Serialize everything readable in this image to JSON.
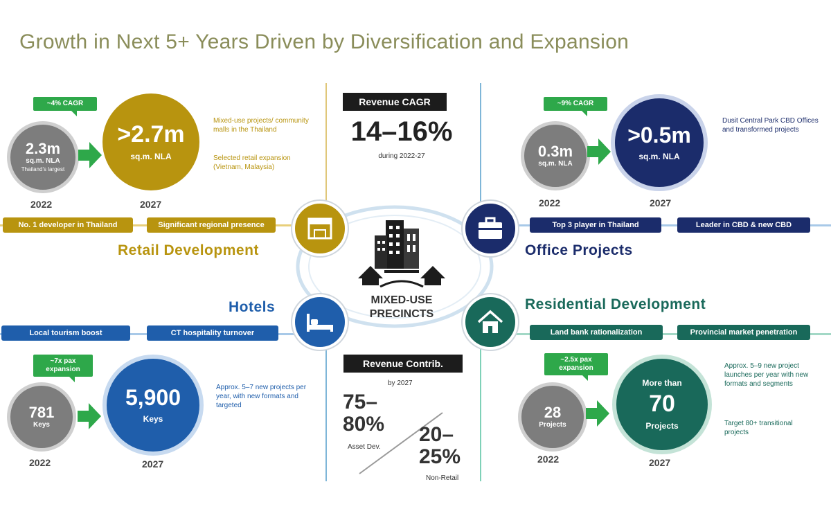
{
  "title": "Growth in Next 5+ Years Driven by Diversification and Expansion",
  "colors": {
    "gold": "#b8940f",
    "navy": "#1b2c6b",
    "blue": "#1f5eab",
    "green": "#19695a",
    "arrow": "#2ea84a",
    "grey": "#7d7d7d"
  },
  "center": {
    "label_line1": "MIXED-USE",
    "label_line2": "PRECINCTS",
    "icon": "buildings-icon"
  },
  "revenue_cagr": {
    "heading": "Revenue CAGR",
    "value": "14–16%",
    "sub": "during 2022-27"
  },
  "revenue_contrib": {
    "heading": "Revenue Contrib.",
    "sub": "by 2027",
    "left_value": "75–80%",
    "left_label": "Asset Dev.",
    "right_value": "20–25%",
    "right_label": "Non-Retail"
  },
  "retail": {
    "title": "Retail Development",
    "icon": "mall-icon",
    "cagr": "~4% CAGR",
    "from_value": "2.3m",
    "from_unit": "sq.m. NLA",
    "from_sub": "Thailand's largest",
    "from_year": "2022",
    "to_value": ">2.7m",
    "to_unit": "sq.m. NLA",
    "to_year": "2027",
    "note1": "Mixed-use projects/ community malls in the Thailand",
    "note2": "Selected retail expansion (Vietnam, Malaysia)",
    "pill1": "No. 1 developer in Thailand",
    "pill2": "Significant regional presence"
  },
  "office": {
    "title": "Office Projects",
    "icon": "briefcase-icon",
    "cagr": "~9% CAGR",
    "from_value": "0.3m",
    "from_unit": "sq.m. NLA",
    "from_year": "2022",
    "to_value": ">0.5m",
    "to_unit": "sq.m. NLA",
    "to_year": "2027",
    "note": "Dusit Central Park CBD Offices and transformed projects",
    "pill1": "Top 3 player in Thailand",
    "pill2": "Leader in CBD & new CBD"
  },
  "hotels": {
    "title": "Hotels",
    "icon": "bed-icon",
    "cagr": "~7x pax expansion",
    "from_value": "781",
    "from_unit": "Keys",
    "from_year": "2022",
    "to_value": "5,900",
    "to_unit": "Keys",
    "to_year": "2027",
    "note": "Approx. 5–7 new projects per year, with new formats and targeted",
    "pill1": "Local tourism boost",
    "pill2": "CT hospitality turnover"
  },
  "residential": {
    "title": "Residential Development",
    "icon": "house-icon",
    "cagr": "~2.5x pax expansion",
    "from_value": "28",
    "from_unit": "Projects",
    "from_year": "2022",
    "to_pre": "More than",
    "to_value": "70",
    "to_unit": "Projects",
    "to_year": "2027",
    "note1": "Approx. 5–9 new project launches per year with new formats and segments",
    "note2": "Target 80+ transitional projects",
    "pill1": "Land bank rationalization",
    "pill2": "Provincial market penetration"
  }
}
